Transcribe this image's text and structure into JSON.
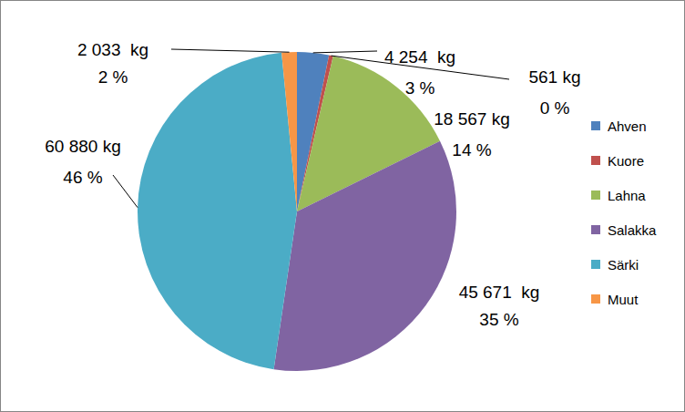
{
  "chart_data": {
    "type": "pie",
    "categories": [
      "Ahven",
      "Kuore",
      "Lahna",
      "Salakka",
      "Särki",
      "Muut"
    ],
    "values": [
      4254,
      561,
      18567,
      45671,
      60880,
      2033
    ],
    "value_labels": [
      "4 254  kg",
      "561 kg",
      "18 567 kg",
      "45 671  kg",
      "60 880 kg",
      "2 033  kg"
    ],
    "percentages": [
      3,
      0,
      14,
      35,
      46,
      2
    ],
    "percentage_labels": [
      "3 %",
      "0 %",
      "14 %",
      "35 %",
      "46 %",
      "2 %"
    ],
    "colors": [
      "#4f81bd",
      "#c0504d",
      "#9bbb59",
      "#8064a2",
      "#4bacc6",
      "#f79646"
    ],
    "legend": "right",
    "data_labels": true
  }
}
